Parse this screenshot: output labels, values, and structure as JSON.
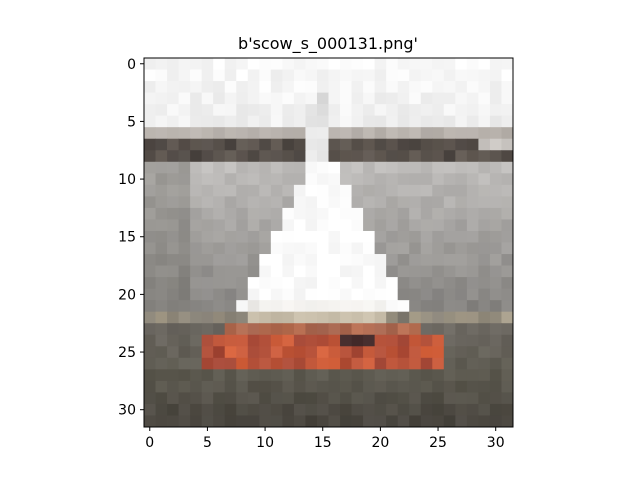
{
  "chart_data": {
    "type": "image",
    "title": "b'scow_s_000131.png'",
    "image_size": [
      32,
      32
    ],
    "xlim": [
      -0.5,
      31.5
    ],
    "ylim": [
      31.5,
      -0.5
    ],
    "xticks": [
      0,
      5,
      10,
      15,
      20,
      25,
      30
    ],
    "yticks": [
      0,
      5,
      10,
      15,
      20,
      25,
      30
    ],
    "grid": false,
    "description_colors": {
      "sky": "#f8f8f8",
      "shoreline": "#4e4844",
      "water": "#b9b7b5",
      "sail": "#fcfcfc",
      "hull": "#d8643e",
      "hull_dark": "#8a3a33",
      "foreground": "#5d5a50"
    }
  }
}
